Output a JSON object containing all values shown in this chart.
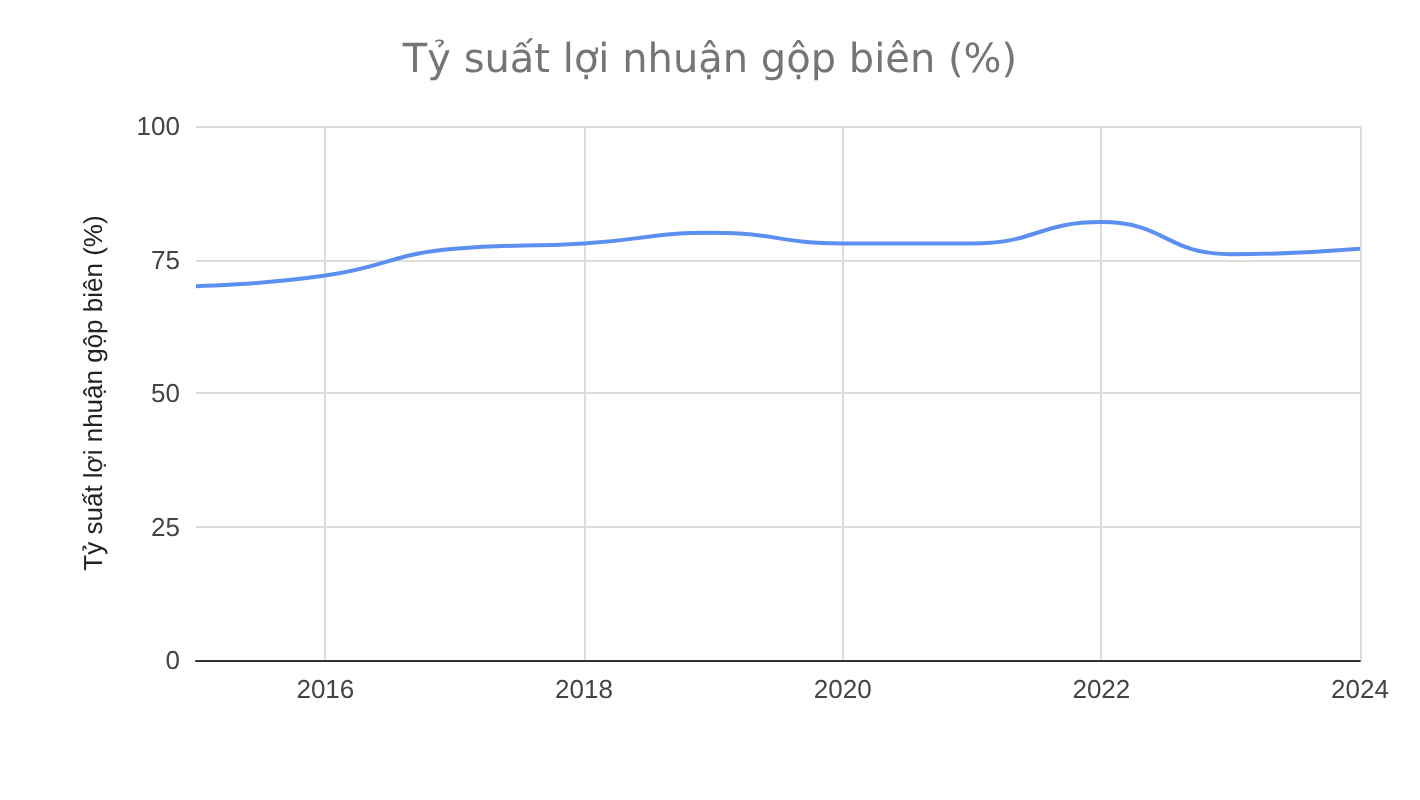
{
  "chart_data": {
    "type": "line",
    "title": "Tỷ suất lợi nhuận gộp biên (%)",
    "ylabel": "Tỷ suất lợi nhuận gộp biên (%)",
    "x": [
      2015,
      2016,
      2017,
      2018,
      2019,
      2020,
      2021,
      2022,
      2023,
      2024
    ],
    "series": [
      {
        "color": "#5b8ff0",
        "values": [
          70,
          72,
          77,
          78,
          80,
          78,
          78,
          82,
          76,
          77
        ]
      }
    ],
    "xlim": [
      2015,
      2024
    ],
    "xticks": [
      2016,
      2018,
      2020,
      2022,
      2024
    ],
    "ylim": [
      0,
      100
    ],
    "yticks": [
      0,
      25,
      50,
      75,
      100
    ],
    "grid": true,
    "marker": "none"
  }
}
